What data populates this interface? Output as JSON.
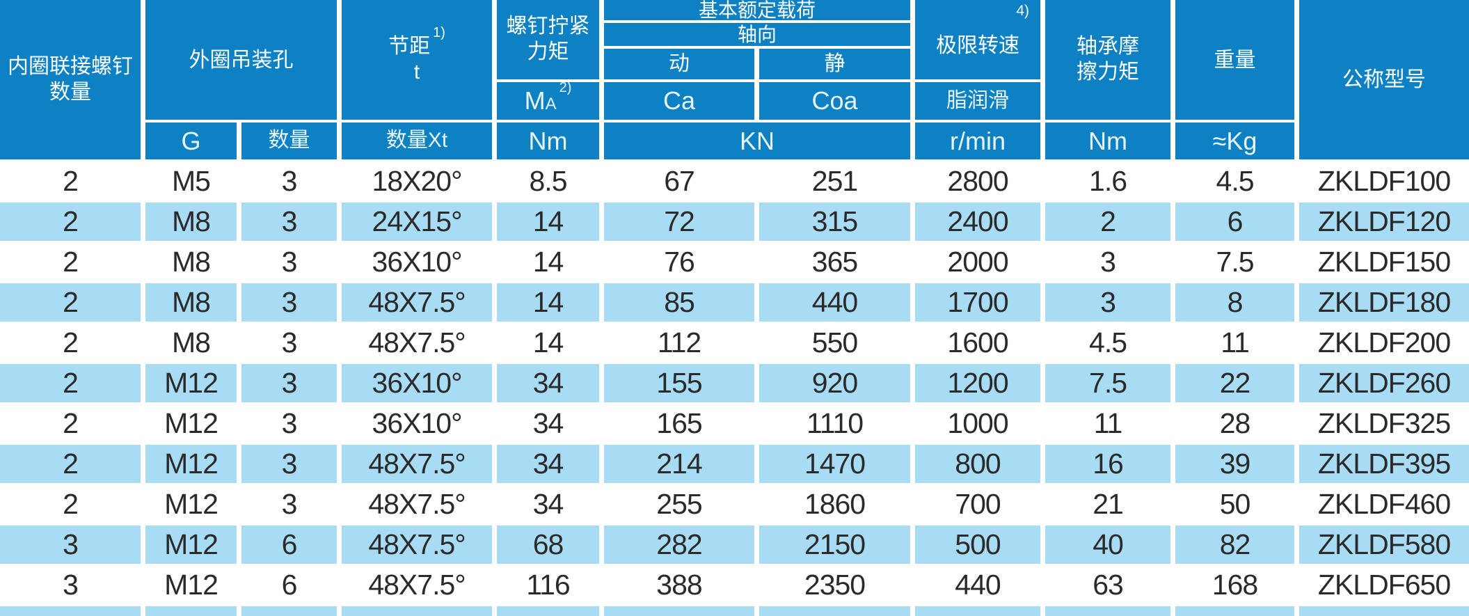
{
  "colors": {
    "header_blue": "#0d81c4",
    "stripe_blue": "#a8dbf4",
    "header_text": "#ffffff",
    "unit_text": "#e8f5fd",
    "data_text": "#2a2a2a"
  },
  "table": {
    "header": {
      "inner_ring_screws": {
        "line1": "内圈联接螺钉",
        "line2": "数量"
      },
      "outer_ring_holes": {
        "label": "外圈吊装孔",
        "thread": "G",
        "qty": "数量"
      },
      "pitch": {
        "label": "节距",
        "note": "1)",
        "symbol": "t",
        "unit": "数量Xt"
      },
      "screw_torque": {
        "line1": "螺钉拧紧",
        "line2": "力矩",
        "symbol": "M",
        "symbol_sub": "A",
        "note": "2)",
        "unit": "Nm"
      },
      "basic_load": {
        "title": "基本额定载荷",
        "axial": "轴向",
        "dynamic": "动",
        "static": "静",
        "dynamic_symbol": "Ca",
        "static_symbol": "Coa",
        "unit": "KN"
      },
      "limit_speed": {
        "note": "4)",
        "label": "极限转速",
        "lubrication": "脂润滑",
        "unit": "r/min"
      },
      "friction_torque": {
        "line1": "轴承摩",
        "line2": "擦力矩",
        "unit": "Nm"
      },
      "weight": {
        "label": "重量",
        "unit": "≈Kg"
      },
      "model": {
        "label": "公称型号"
      }
    },
    "column_keys": [
      "inner-ring-screw-qty",
      "lifting-hole-thread",
      "lifting-hole-qty",
      "pitch",
      "tightening-torque",
      "dynamic-load-ca",
      "static-load-coa",
      "limit-speed-grease",
      "friction-torque",
      "weight",
      "model"
    ],
    "rows": [
      [
        "2",
        "M5",
        "3",
        "18X20°",
        "8.5",
        "67",
        "251",
        "2800",
        "1.6",
        "4.5",
        "ZKLDF100"
      ],
      [
        "2",
        "M8",
        "3",
        "24X15°",
        "14",
        "72",
        "315",
        "2400",
        "2",
        "6",
        "ZKLDF120"
      ],
      [
        "2",
        "M8",
        "3",
        "36X10°",
        "14",
        "76",
        "365",
        "2000",
        "3",
        "7.5",
        "ZKLDF150"
      ],
      [
        "2",
        "M8",
        "3",
        "48X7.5°",
        "14",
        "85",
        "440",
        "1700",
        "3",
        "8",
        "ZKLDF180"
      ],
      [
        "2",
        "M8",
        "3",
        "48X7.5°",
        "14",
        "112",
        "550",
        "1600",
        "4.5",
        "11",
        "ZKLDF200"
      ],
      [
        "2",
        "M12",
        "3",
        "36X10°",
        "34",
        "155",
        "920",
        "1200",
        "7.5",
        "22",
        "ZKLDF260"
      ],
      [
        "2",
        "M12",
        "3",
        "36X10°",
        "34",
        "165",
        "1110",
        "1000",
        "11",
        "28",
        "ZKLDF325"
      ],
      [
        "2",
        "M12",
        "3",
        "48X7.5°",
        "34",
        "214",
        "1470",
        "800",
        "16",
        "39",
        "ZKLDF395"
      ],
      [
        "2",
        "M12",
        "3",
        "48X7.5°",
        "34",
        "255",
        "1860",
        "700",
        "21",
        "50",
        "ZKLDF460"
      ],
      [
        "3",
        "M12",
        "6",
        "48X7.5°",
        "68",
        "282",
        "2150",
        "500",
        "40",
        "82",
        "ZKLDF580"
      ],
      [
        "3",
        "M12",
        "6",
        "48X7.5°",
        "116",
        "388",
        "2350",
        "440",
        "63",
        "168",
        "ZKLDF650"
      ]
    ]
  }
}
